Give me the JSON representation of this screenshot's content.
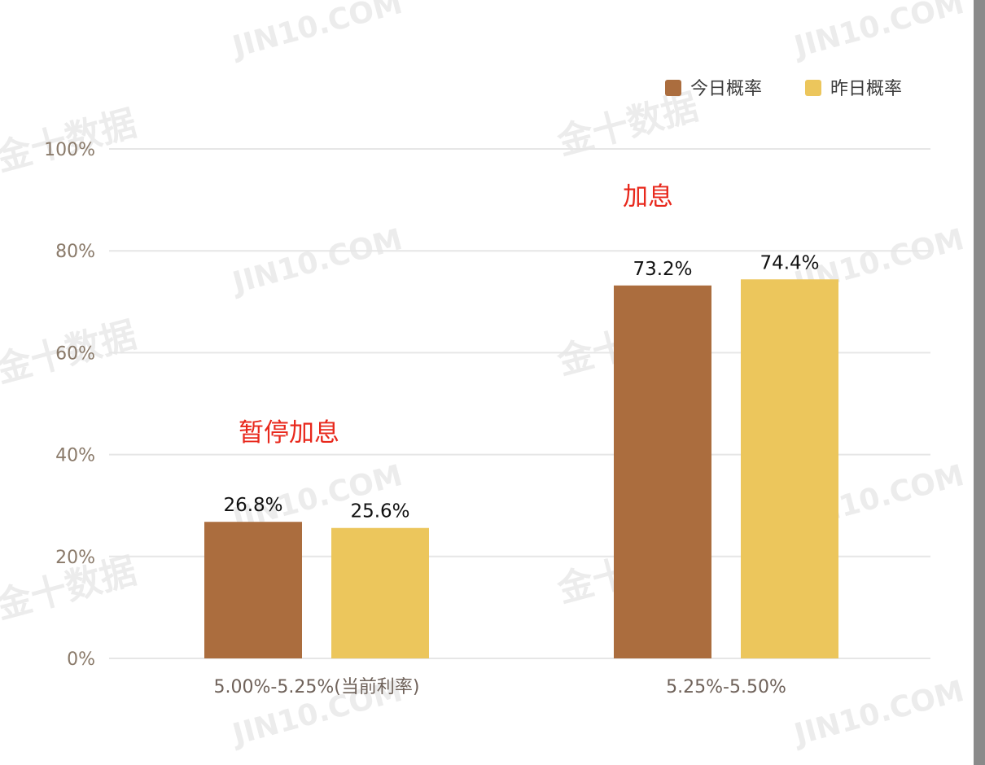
{
  "chart_data": {
    "type": "bar",
    "categories": [
      "5.00%-5.25%(当前利率)",
      "5.25%-5.50%"
    ],
    "series": [
      {
        "name": "今日概率",
        "values": [
          26.8,
          73.2
        ],
        "labels": [
          "26.8%",
          "73.2%"
        ],
        "color": "#ab6d3e"
      },
      {
        "name": "昨日概率",
        "values": [
          25.6,
          74.4
        ],
        "labels": [
          "25.6%",
          "74.4%"
        ],
        "color": "#ecc65c"
      }
    ],
    "ylim": [
      0,
      100
    ],
    "yticks": [
      0,
      20,
      40,
      60,
      80,
      100
    ],
    "ytick_labels": [
      "0%",
      "20%",
      "40%",
      "60%",
      "80%",
      "100%"
    ],
    "grid": true,
    "legend_position": "top-right",
    "annotations": [
      "暂停加息",
      "加息"
    ],
    "watermarks": [
      "JIN10.COM",
      "金十数据"
    ],
    "colors": {
      "grid": "#e6e6e6",
      "annotation": "#e8281c"
    }
  }
}
